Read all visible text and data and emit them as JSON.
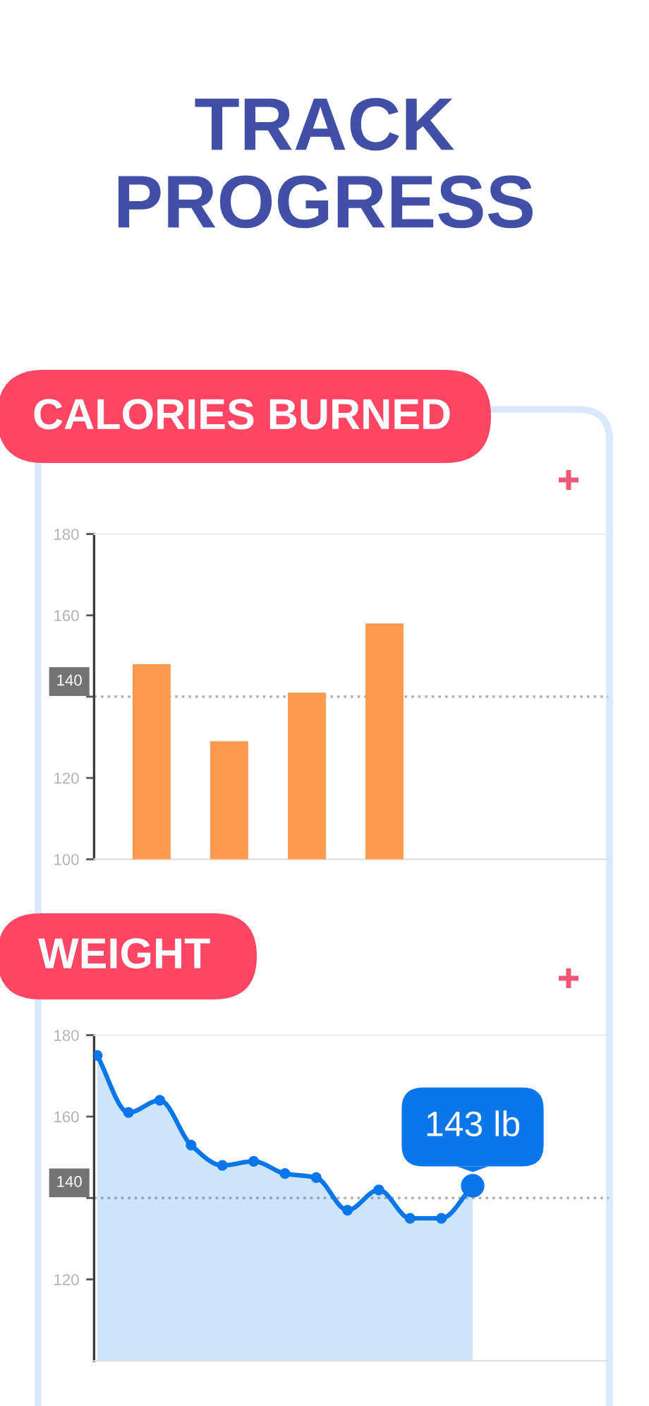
{
  "chart_data": [
    {
      "type": "other",
      "title": "TRACK PROGRESS"
    },
    {
      "type": "bar",
      "title": "CALORIES BURNED",
      "categories": [
        null,
        null,
        null,
        null
      ],
      "values": [
        148,
        129,
        141,
        158
      ],
      "color": "#ff994e",
      "ylim": [
        100,
        180
      ],
      "yticks": [
        100,
        120,
        {
          "value": 140,
          "label": null
        },
        160,
        180
      ],
      "ref_lines": [
        {
          "axis": "y",
          "value": 140,
          "label": "140",
          "color": "#b0b0b0",
          "line_style": "dotted"
        }
      ]
    },
    {
      "type": "area",
      "title": "WEIGHT",
      "categories": [
        null,
        null,
        null,
        null,
        null,
        null,
        null,
        null,
        null,
        null,
        null,
        null,
        null
      ],
      "series": [
        {
          "color": "#0b76ea",
          "values": [
            175,
            161,
            164,
            153,
            148,
            149,
            146,
            145,
            137,
            142,
            135,
            135,
            143
          ],
          "value_labels": [
            null,
            null,
            null,
            null,
            null,
            null,
            null,
            null,
            null,
            null,
            null,
            null,
            "143 lb"
          ]
        }
      ],
      "ylim": [
        100,
        180
      ],
      "yticks": [
        120,
        {
          "value": 140,
          "label": null
        },
        160,
        180
      ],
      "ref_lines": [
        {
          "axis": "y",
          "value": 140,
          "label": "140",
          "color": "#b0b0b0",
          "line_style": "dotted"
        }
      ],
      "marker": "circle"
    }
  ]
}
